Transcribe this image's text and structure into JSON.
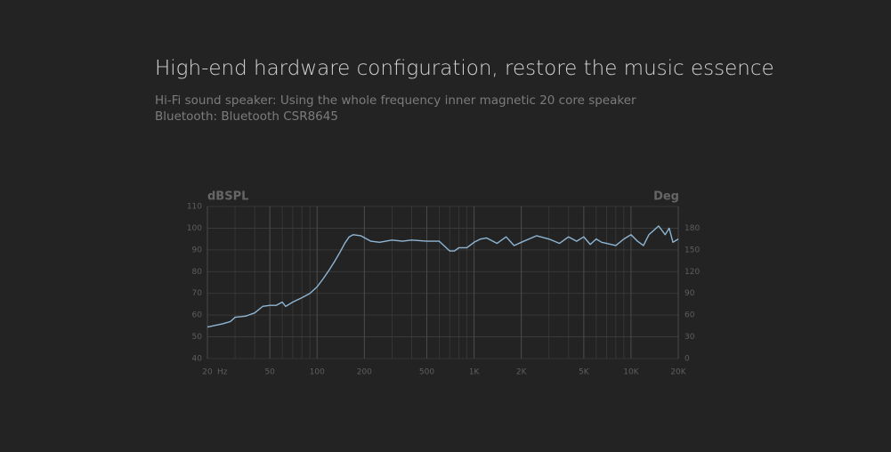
{
  "header": {
    "title": "High-end hardware configuration, restore the music essence",
    "lines": [
      "Hi-Fi sound speaker: Using the whole frequency inner magnetic 20 core speaker",
      "Bluetooth: Bluetooth CSR8645"
    ]
  },
  "chart_data": {
    "type": "line",
    "xscale": "log",
    "grid": true,
    "minor_grid": true,
    "ylabel": "dBSPL",
    "y2label": "Deg",
    "x_unit": "Hz",
    "x": [
      20,
      25,
      28,
      30,
      35,
      40,
      45,
      50,
      55,
      60,
      63,
      70,
      80,
      90,
      100,
      110,
      120,
      130,
      140,
      150,
      160,
      170,
      190,
      220,
      250,
      300,
      350,
      400,
      500,
      600,
      700,
      750,
      800,
      900,
      1000,
      1100,
      1200,
      1400,
      1600,
      1800,
      2000,
      2500,
      3000,
      3500,
      4000,
      4500,
      5000,
      5500,
      6000,
      6500,
      7000,
      8000,
      9000,
      10000,
      11000,
      12000,
      13000,
      15000,
      16500,
      17500,
      18500,
      20000
    ],
    "series": [
      {
        "color": "#8fb6d4",
        "values": [
          54.5,
          56,
          57,
          59,
          59.5,
          61,
          64,
          64.5,
          64.5,
          66,
          64,
          66,
          68,
          70,
          73,
          77,
          81,
          85,
          89,
          93,
          96,
          97,
          96.5,
          94,
          93.5,
          94.5,
          94,
          94.5,
          94,
          94,
          89.5,
          89.5,
          91,
          91,
          93.5,
          95,
          95.5,
          93,
          96,
          92,
          93.5,
          96.5,
          95,
          93,
          96,
          94,
          96,
          92.5,
          95,
          93.5,
          93,
          92,
          95,
          97,
          94,
          92,
          97,
          101,
          97,
          100,
          93.5,
          95
        ]
      }
    ],
    "xlim": [
      20,
      20000
    ],
    "xticks": [
      20,
      50,
      100,
      200,
      500,
      {
        "value": 1000,
        "label": "1K"
      },
      {
        "value": 2000,
        "label": "2K"
      },
      {
        "value": 5000,
        "label": "5K"
      },
      {
        "value": 10000,
        "label": "10K"
      },
      {
        "value": 20000,
        "label": "20K"
      }
    ],
    "ylim": [
      40,
      110
    ],
    "yticks": [
      40,
      50,
      60,
      70,
      80,
      90,
      100,
      110
    ],
    "y2lim": [
      0,
      210
    ],
    "y2ticks": [
      0,
      30,
      60,
      90,
      120,
      150,
      180
    ]
  }
}
